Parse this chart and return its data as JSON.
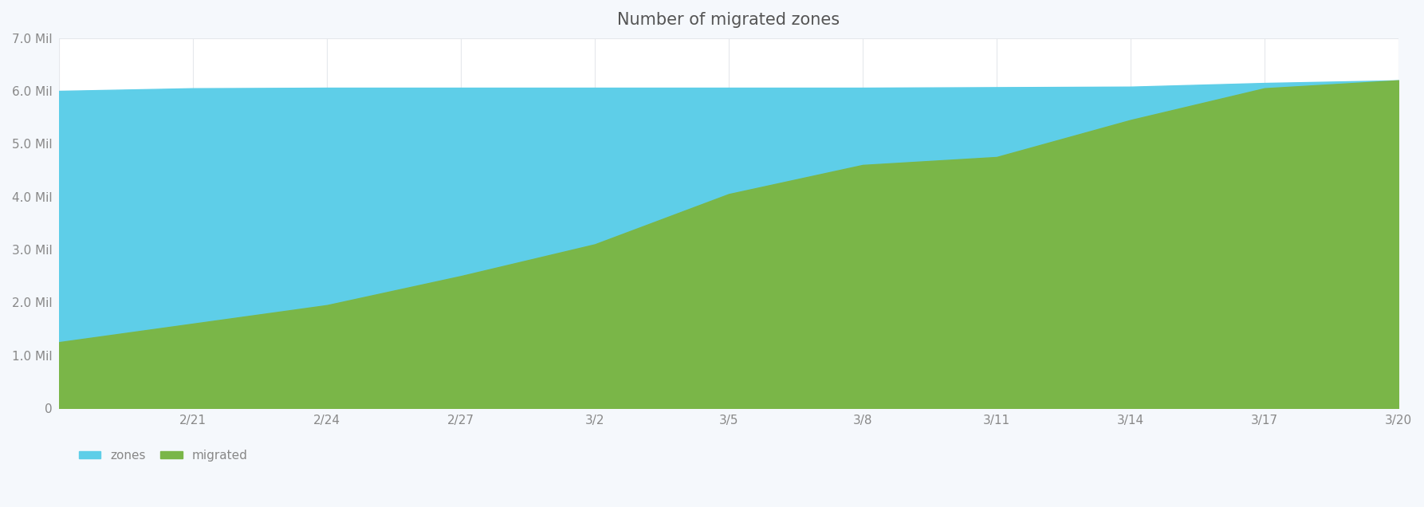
{
  "title": "Number of migrated zones",
  "title_fontsize": 15,
  "title_color": "#555555",
  "background_color": "#f5f8fc",
  "plot_bg_color": "#ffffff",
  "zones_color": "#5ecee8",
  "migrated_color": "#7ab648",
  "legend_entries": [
    "zones",
    "migrated"
  ],
  "x_tick_labels": [
    "",
    "2/21",
    "2/24",
    "2/27",
    "3/2",
    "3/5",
    "3/8",
    "3/11",
    "3/14",
    "3/17",
    "3/20"
  ],
  "ylim": [
    0,
    7000000
  ],
  "yticks": [
    0,
    1000000,
    2000000,
    3000000,
    4000000,
    5000000,
    6000000,
    7000000
  ],
  "ytick_labels": [
    "0",
    "1.0 Mil",
    "2.0 Mil",
    "3.0 Mil",
    "4.0 Mil",
    "5.0 Mil",
    "6.0 Mil",
    "7.0 Mil"
  ],
  "x_values": [
    0,
    3,
    6,
    9,
    12,
    15,
    18,
    21,
    24,
    27,
    30
  ],
  "zones_values": [
    6000000,
    6050000,
    6060000,
    6060000,
    6060000,
    6060000,
    6060000,
    6070000,
    6080000,
    6150000,
    6200000
  ],
  "migrated_values": [
    1250000,
    1600000,
    1950000,
    2500000,
    3100000,
    4050000,
    4600000,
    4750000,
    5450000,
    6050000,
    6200000
  ],
  "grid_color": "#e5e8ec",
  "tick_color": "#888888",
  "tick_fontsize": 11
}
